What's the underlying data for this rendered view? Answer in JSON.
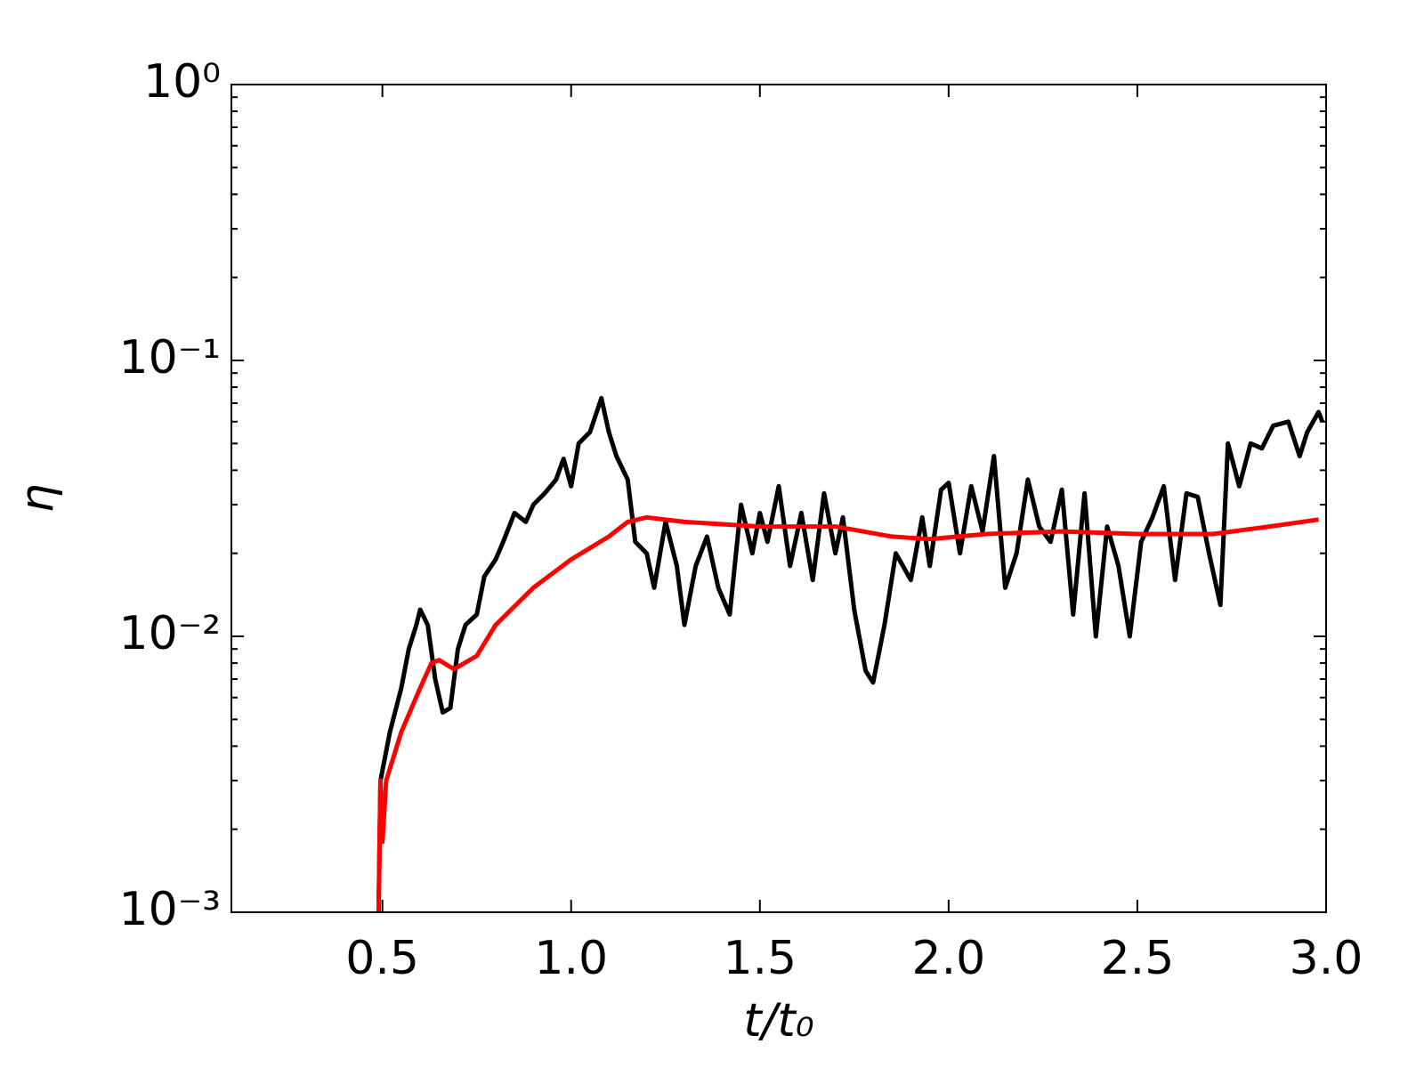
{
  "chart_data": {
    "type": "line",
    "xlabel": "t/t₀",
    "ylabel": "η",
    "xlim": [
      0.1,
      3.0
    ],
    "xticks": [
      0.5,
      {
        "value": 1,
        "label": "1.0"
      },
      1.5,
      {
        "value": 2,
        "label": "2.0"
      },
      2.5,
      {
        "value": 3,
        "label": "3.0"
      }
    ],
    "ylim": [
      0.001,
      1
    ],
    "yticks": [
      {
        "value": 0.001,
        "label": "10⁻³"
      },
      {
        "value": 0.01,
        "label": "10⁻²"
      },
      {
        "value": 0.1,
        "label": "10⁻¹"
      },
      {
        "value": 1,
        "label": "10⁰"
      }
    ],
    "log_y": true,
    "grid": false,
    "series": [
      {
        "color": "#000000",
        "x": [
          0.49,
          0.495,
          0.52,
          0.55,
          0.57,
          0.59,
          0.6,
          0.62,
          0.64,
          0.66,
          0.68,
          0.7,
          0.72,
          0.75,
          0.77,
          0.8,
          0.82,
          0.85,
          0.88,
          0.9,
          0.93,
          0.96,
          0.98,
          1.0,
          1.02,
          1.05,
          1.08,
          1.1,
          1.12,
          1.15,
          1.17,
          1.2,
          1.22,
          1.25,
          1.28,
          1.3,
          1.33,
          1.36,
          1.39,
          1.42,
          1.45,
          1.48,
          1.5,
          1.52,
          1.55,
          1.58,
          1.61,
          1.64,
          1.67,
          1.7,
          1.72,
          1.75,
          1.78,
          1.8,
          1.83,
          1.86,
          1.9,
          1.93,
          1.95,
          1.98,
          2.0,
          2.03,
          2.06,
          2.09,
          2.12,
          2.15,
          2.18,
          2.21,
          2.24,
          2.27,
          2.3,
          2.33,
          2.36,
          2.39,
          2.42,
          2.45,
          2.48,
          2.51,
          2.54,
          2.57,
          2.6,
          2.63,
          2.66,
          2.69,
          2.72,
          2.74,
          2.77,
          2.8,
          2.83,
          2.86,
          2.9,
          2.93,
          2.95,
          2.98,
          2.99
        ],
        "values": [
          0.001,
          0.003,
          0.0045,
          0.0065,
          0.009,
          0.011,
          0.0125,
          0.011,
          0.007,
          0.0053,
          0.0055,
          0.009,
          0.011,
          0.012,
          0.0165,
          0.019,
          0.022,
          0.028,
          0.026,
          0.03,
          0.033,
          0.037,
          0.044,
          0.035,
          0.05,
          0.055,
          0.073,
          0.055,
          0.045,
          0.037,
          0.022,
          0.02,
          0.015,
          0.026,
          0.018,
          0.011,
          0.018,
          0.023,
          0.015,
          0.012,
          0.03,
          0.02,
          0.028,
          0.022,
          0.035,
          0.018,
          0.028,
          0.016,
          0.033,
          0.02,
          0.027,
          0.0125,
          0.0075,
          0.0068,
          0.011,
          0.02,
          0.016,
          0.027,
          0.018,
          0.034,
          0.036,
          0.02,
          0.035,
          0.024,
          0.045,
          0.015,
          0.02,
          0.037,
          0.025,
          0.022,
          0.034,
          0.012,
          0.033,
          0.01,
          0.025,
          0.018,
          0.01,
          0.022,
          0.027,
          0.035,
          0.016,
          0.033,
          0.032,
          0.02,
          0.013,
          0.05,
          0.035,
          0.05,
          0.048,
          0.058,
          0.06,
          0.045,
          0.055,
          0.065,
          0.06
        ]
      },
      {
        "color": "#ff0000",
        "x": [
          0.49,
          0.495,
          0.5,
          0.51,
          0.55,
          0.6,
          0.63,
          0.65,
          0.69,
          0.75,
          0.8,
          0.9,
          1.0,
          1.1,
          1.15,
          1.2,
          1.3,
          1.5,
          1.7,
          1.85,
          1.95,
          2.1,
          2.3,
          2.5,
          2.7,
          2.85,
          2.98
        ],
        "values": [
          0.001,
          0.003,
          0.0018,
          0.003,
          0.0045,
          0.0065,
          0.008,
          0.0082,
          0.0076,
          0.0085,
          0.011,
          0.015,
          0.019,
          0.023,
          0.026,
          0.027,
          0.026,
          0.025,
          0.025,
          0.023,
          0.0225,
          0.0235,
          0.024,
          0.0235,
          0.0235,
          0.025,
          0.0265
        ]
      }
    ]
  }
}
